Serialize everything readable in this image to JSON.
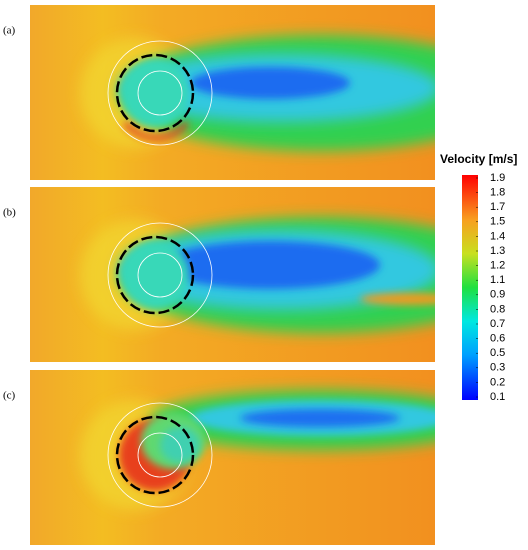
{
  "chart_data": {
    "type": "contour",
    "panels": [
      "(a)",
      "(b)",
      "(c)"
    ],
    "colorbar": {
      "title": "Velocity [m/s]",
      "lim": [
        0.1,
        1.9
      ],
      "ticks": [
        {
          "value": 1.9,
          "label": "1.9"
        },
        {
          "value": 1.78,
          "label": "1.8"
        },
        {
          "value": 1.66,
          "label": "1.7"
        },
        {
          "value": 1.54,
          "label": "1.5"
        },
        {
          "value": 1.42,
          "label": "1.4"
        },
        {
          "value": 1.3,
          "label": "1.3"
        },
        {
          "value": 1.18,
          "label": "1.2"
        },
        {
          "value": 1.06,
          "label": "1.1"
        },
        {
          "value": 0.94,
          "label": "0.9"
        },
        {
          "value": 0.82,
          "label": "0.8"
        },
        {
          "value": 0.7,
          "label": "0.7"
        },
        {
          "value": 0.58,
          "label": "0.6"
        },
        {
          "value": 0.46,
          "label": "0.5"
        },
        {
          "value": 0.34,
          "label": "0.3"
        },
        {
          "value": 0.22,
          "label": "0.2"
        },
        {
          "value": 0.1,
          "label": "0.1"
        }
      ]
    }
  }
}
